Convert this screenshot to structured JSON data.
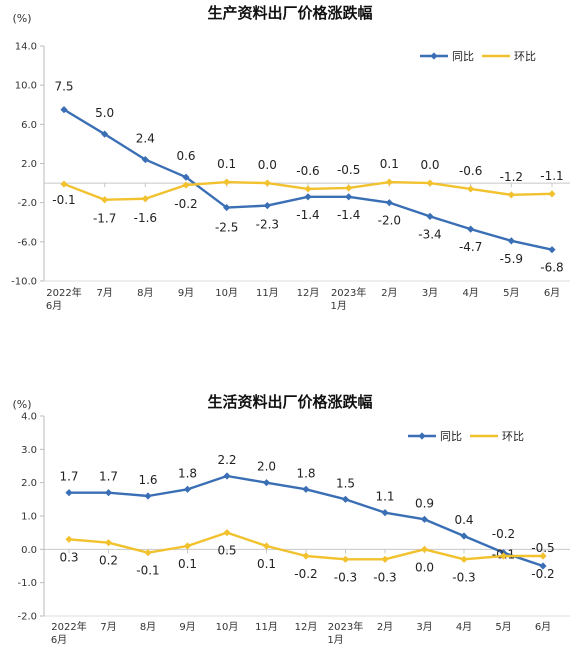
{
  "chart_data": [
    {
      "type": "line",
      "title": "生产资料出厂价格涨跌幅",
      "unit": "(%)",
      "ylim": [
        -10.0,
        14.0
      ],
      "yticks": [
        "14.0",
        "10.0",
        "6.0",
        "2.0",
        "-2.0",
        "-6.0",
        "-10.0"
      ],
      "ytick_values": [
        14,
        10,
        6,
        2,
        -2,
        -6,
        -10
      ],
      "categories": [
        [
          "2022年",
          "6月"
        ],
        [
          "7月"
        ],
        [
          "8月"
        ],
        [
          "9月"
        ],
        [
          "10月"
        ],
        [
          "11月"
        ],
        [
          "12月"
        ],
        [
          "2023年",
          "1月"
        ],
        [
          "2月"
        ],
        [
          "3月"
        ],
        [
          "4月"
        ],
        [
          "5月"
        ],
        [
          "6月"
        ]
      ],
      "series": [
        {
          "name": "同比",
          "color": "#3a6fb5",
          "values": [
            7.5,
            5.0,
            2.4,
            0.6,
            -2.5,
            -2.3,
            -1.4,
            -1.4,
            -2.0,
            -3.4,
            -4.7,
            -5.9,
            -6.8
          ],
          "labels": [
            "7.5",
            "5.0",
            "2.4",
            "0.6",
            "-2.5",
            "-2.3",
            "-1.4",
            "-1.4",
            "-2.0",
            "-3.4",
            "-4.7",
            "-5.9",
            "-6.8"
          ]
        },
        {
          "name": "环比",
          "color": "#f2c12e",
          "values": [
            -0.1,
            -1.7,
            -1.6,
            -0.2,
            0.1,
            0.0,
            -0.6,
            -0.5,
            0.1,
            0.0,
            -0.6,
            -1.2,
            -1.1
          ],
          "labels": [
            "-0.1",
            "-1.7",
            "-1.6",
            "-0.2",
            "0.1",
            "0.0",
            "-0.6",
            "-0.5",
            "0.1",
            "0.0",
            "-0.6",
            "-1.2",
            "-1.1"
          ]
        }
      ],
      "legend": "top-right",
      "grid": false
    },
    {
      "type": "line",
      "title": "生活资料出厂价格涨跌幅",
      "unit": "(%)",
      "ylim": [
        -2.0,
        4.0
      ],
      "yticks": [
        "4.0",
        "3.0",
        "2.0",
        "1.0",
        "0.0",
        "-1.0",
        "-2.0"
      ],
      "ytick_values": [
        4,
        3,
        2,
        1,
        0,
        -1,
        -2
      ],
      "categories": [
        [
          "2022年",
          "6月"
        ],
        [
          "7月"
        ],
        [
          "8月"
        ],
        [
          "9月"
        ],
        [
          "10月"
        ],
        [
          "11月"
        ],
        [
          "12月"
        ],
        [
          "2023年",
          "1月"
        ],
        [
          "2月"
        ],
        [
          "3月"
        ],
        [
          "4月"
        ],
        [
          "5月"
        ],
        [
          "6月"
        ]
      ],
      "series": [
        {
          "name": "同比",
          "color": "#3a6fb5",
          "values": [
            1.7,
            1.7,
            1.6,
            1.8,
            2.2,
            2.0,
            1.8,
            1.5,
            1.1,
            0.9,
            0.4,
            -0.1,
            -0.5
          ],
          "labels": [
            "1.7",
            "1.7",
            "1.6",
            "1.8",
            "2.2",
            "2.0",
            "1.8",
            "1.5",
            "1.1",
            "0.9",
            "0.4",
            "-0.1",
            "-0.5"
          ]
        },
        {
          "name": "环比",
          "color": "#f2c12e",
          "values": [
            0.3,
            0.2,
            -0.1,
            0.1,
            0.5,
            0.1,
            -0.2,
            -0.3,
            -0.3,
            0.0,
            -0.3,
            -0.2,
            -0.2
          ],
          "labels": [
            "0.3",
            "0.2",
            "-0.1",
            "0.1",
            "0.5",
            "0.1",
            "-0.2",
            "-0.3",
            "-0.3",
            "0.0",
            "-0.3",
            "-0.2",
            "-0.2"
          ]
        }
      ],
      "legend": "top-right",
      "grid": false
    }
  ]
}
